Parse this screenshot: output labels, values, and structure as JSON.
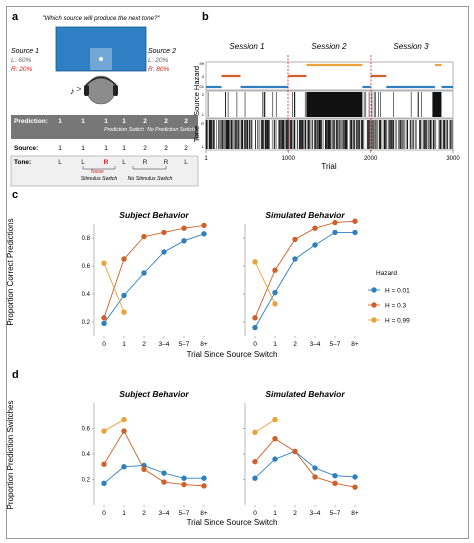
{
  "panel_a": {
    "label": "a",
    "question": "\"Which source will produce the next tone?\"",
    "source1": {
      "title": "Source 1",
      "l": "L: 60%",
      "r": "R: 20%"
    },
    "source2": {
      "title": "Source 2",
      "l": "L: 20%",
      "r": "R: 80%"
    },
    "prediction_label": "Prediction:",
    "predictions": [
      "1",
      "1",
      "1",
      "1",
      "2",
      "2",
      "2"
    ],
    "prediction_switch": "Prediction Switch",
    "no_prediction_switch": "No Prediction Switch",
    "source_label": "Source:",
    "sources": [
      "1",
      "1",
      "1",
      "1",
      "2",
      "2",
      "2"
    ],
    "tone_label": "Tone:",
    "tones": [
      "L",
      "L",
      "R",
      "L",
      "R",
      "R",
      "L"
    ],
    "noise": "Noise",
    "stimulus_switch": "Stimulus Switch",
    "no_stimulus_switch": "No Stimulus Switch"
  },
  "panel_b": {
    "label": "b",
    "sessions": [
      "Session 1",
      "Session 2",
      "Session 3"
    ],
    "hazard_label": "Hazard",
    "hazard_ticks": [
      ".99",
      ".3",
      ".01"
    ],
    "source_label": "Source",
    "source_ticks": [
      "2",
      "1"
    ],
    "tone_label": "Tone",
    "tone_ticks": [
      "R",
      "L"
    ],
    "x_ticks": [
      "1",
      "1000",
      "2000",
      "3000"
    ],
    "xlabel": "Trial"
  },
  "panel_c": {
    "label": "c",
    "ylabel": "Proportion Correct Predictions",
    "xlabel": "Trial Since Source Switch",
    "legend_title": "Hazard",
    "chart_data": {
      "type": "line",
      "categories": [
        "0",
        "1",
        "2",
        "3–4",
        "5–7",
        "8+"
      ],
      "ylim": [
        0.1,
        0.9
      ],
      "y_ticks": [
        "0.2",
        "0.4",
        "0.6",
        "0.8"
      ],
      "subplots": [
        {
          "title": "Subject Behavior",
          "series": [
            {
              "name": "H = 0.01",
              "color": "#2f7fbf",
              "values": [
                0.19,
                0.39,
                0.55,
                0.7,
                0.78,
                0.83
              ]
            },
            {
              "name": "H = 0.3",
              "color": "#d0602a",
              "values": [
                0.23,
                0.65,
                0.81,
                0.84,
                0.87,
                0.89
              ]
            },
            {
              "name": "H = 0.99",
              "color": "#e8a33a",
              "values": [
                0.62,
                0.27,
                null,
                null,
                null,
                null
              ]
            }
          ]
        },
        {
          "title": "Simulated Behavior",
          "series": [
            {
              "name": "H = 0.01",
              "color": "#2f7fbf",
              "values": [
                0.16,
                0.41,
                0.65,
                0.75,
                0.84,
                0.84
              ]
            },
            {
              "name": "H = 0.3",
              "color": "#d0602a",
              "values": [
                0.23,
                0.57,
                0.79,
                0.87,
                0.91,
                0.92
              ]
            },
            {
              "name": "H = 0.99",
              "color": "#e8a33a",
              "values": [
                0.63,
                0.33,
                null,
                null,
                null,
                null
              ]
            }
          ]
        }
      ]
    }
  },
  "panel_d": {
    "label": "d",
    "ylabel": "Proportion Prediction Switches",
    "xlabel": "Trial Since Source Switch",
    "chart_data": {
      "type": "line",
      "categories": [
        "0",
        "1",
        "2",
        "3–4",
        "5–7",
        "8+"
      ],
      "ylim": [
        0.0,
        0.8
      ],
      "y_ticks": [
        "0.2",
        "0.4",
        "0.6"
      ],
      "subplots": [
        {
          "title": "Subject Behavior",
          "series": [
            {
              "name": "H = 0.01",
              "color": "#2f7fbf",
              "values": [
                0.17,
                0.3,
                0.31,
                0.25,
                0.21,
                0.21
              ]
            },
            {
              "name": "H = 0.3",
              "color": "#d0602a",
              "values": [
                0.32,
                0.58,
                0.28,
                0.18,
                0.16,
                0.15
              ]
            },
            {
              "name": "H = 0.99",
              "color": "#e8a33a",
              "values": [
                0.58,
                0.67,
                null,
                null,
                null,
                null
              ]
            }
          ]
        },
        {
          "title": "Simulated Behavior",
          "series": [
            {
              "name": "H = 0.01",
              "color": "#2f7fbf",
              "values": [
                0.21,
                0.36,
                0.42,
                0.29,
                0.23,
                0.22
              ]
            },
            {
              "name": "H = 0.3",
              "color": "#d0602a",
              "values": [
                0.34,
                0.52,
                0.42,
                0.22,
                0.17,
                0.14
              ]
            },
            {
              "name": "H = 0.99",
              "color": "#e8a33a",
              "values": [
                0.57,
                0.67,
                null,
                null,
                null,
                null
              ]
            }
          ]
        }
      ]
    }
  }
}
